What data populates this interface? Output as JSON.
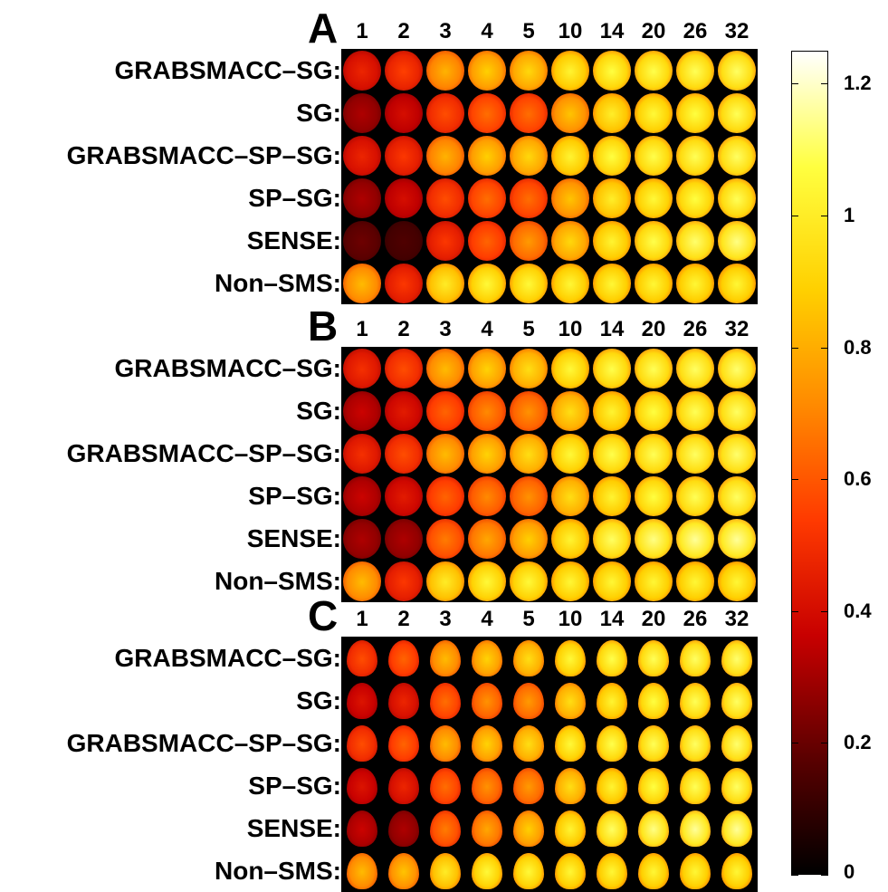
{
  "columns": [
    "1",
    "2",
    "3",
    "4",
    "5",
    "10",
    "14",
    "20",
    "26",
    "32"
  ],
  "panels": [
    {
      "letter": "A",
      "rows": [
        "GRABSMACC–SG:",
        "SG:",
        "GRABSMACC–SP–SG:",
        "SP–SG:",
        "SENSE:",
        "Non–SMS:"
      ],
      "intensity": [
        [
          0.45,
          0.52,
          0.78,
          0.85,
          0.88,
          0.98,
          1.02,
          1.03,
          1.04,
          1.05
        ],
        [
          0.3,
          0.38,
          0.55,
          0.62,
          0.62,
          0.82,
          0.96,
          1.0,
          1.02,
          1.04
        ],
        [
          0.45,
          0.5,
          0.78,
          0.85,
          0.88,
          0.98,
          1.02,
          1.03,
          1.04,
          1.05
        ],
        [
          0.3,
          0.38,
          0.55,
          0.62,
          0.62,
          0.82,
          0.96,
          1.0,
          1.02,
          1.04
        ],
        [
          0.2,
          0.15,
          0.5,
          0.6,
          0.72,
          0.88,
          0.98,
          1.03,
          1.06,
          1.08
        ],
        [
          0.8,
          0.5,
          0.95,
          1.0,
          1.0,
          0.99,
          0.99,
          0.99,
          0.99,
          0.99
        ]
      ]
    },
    {
      "letter": "B",
      "rows": [
        "GRABSMACC–SG:",
        "SG:",
        "GRABSMACC–SP–SG:",
        "SP–SG:",
        "SENSE:",
        "Non–SMS:"
      ],
      "intensity": [
        [
          0.48,
          0.55,
          0.8,
          0.86,
          0.9,
          1.0,
          1.03,
          1.04,
          1.05,
          1.06
        ],
        [
          0.35,
          0.42,
          0.6,
          0.68,
          0.7,
          0.9,
          0.98,
          1.02,
          1.04,
          1.05
        ],
        [
          0.48,
          0.55,
          0.8,
          0.86,
          0.9,
          1.0,
          1.03,
          1.04,
          1.05,
          1.06
        ],
        [
          0.35,
          0.42,
          0.6,
          0.68,
          0.7,
          0.9,
          0.98,
          1.02,
          1.04,
          1.05
        ],
        [
          0.3,
          0.3,
          0.65,
          0.75,
          0.85,
          0.98,
          1.05,
          1.08,
          1.1,
          1.1
        ],
        [
          0.8,
          0.5,
          0.95,
          1.0,
          1.0,
          0.99,
          0.99,
          0.99,
          0.99,
          0.99
        ]
      ]
    },
    {
      "letter": "C",
      "rows": [
        "GRABSMACC–SG:",
        "SG:",
        "GRABSMACC–SP–SG:",
        "SP–SG:",
        "SENSE:",
        "Non–SMS:"
      ],
      "intensity": [
        [
          0.55,
          0.6,
          0.8,
          0.86,
          0.9,
          1.0,
          1.03,
          1.04,
          1.05,
          1.06
        ],
        [
          0.4,
          0.45,
          0.62,
          0.7,
          0.72,
          0.9,
          0.98,
          1.02,
          1.04,
          1.05
        ],
        [
          0.55,
          0.6,
          0.8,
          0.86,
          0.9,
          1.0,
          1.03,
          1.04,
          1.05,
          1.06
        ],
        [
          0.4,
          0.45,
          0.62,
          0.7,
          0.72,
          0.9,
          0.98,
          1.02,
          1.04,
          1.05
        ],
        [
          0.35,
          0.3,
          0.65,
          0.75,
          0.85,
          0.98,
          1.05,
          1.08,
          1.1,
          1.1
        ],
        [
          0.8,
          0.82,
          0.95,
          1.0,
          1.0,
          0.99,
          0.99,
          0.99,
          0.99,
          0.99
        ]
      ]
    }
  ],
  "colorbar": {
    "min": 0,
    "max": 1.25,
    "ticks": [
      "0",
      "0.2",
      "0.4",
      "0.6",
      "0.8",
      "1",
      "1.2"
    ],
    "tick_values": [
      0,
      0.2,
      0.4,
      0.6,
      0.8,
      1.0,
      1.2
    ],
    "colormap": "hot",
    "colors": [
      "#000000",
      "#5a0000",
      "#c80000",
      "#ff3a00",
      "#ff8a00",
      "#ffd000",
      "#ffff40",
      "#ffffff"
    ]
  }
}
